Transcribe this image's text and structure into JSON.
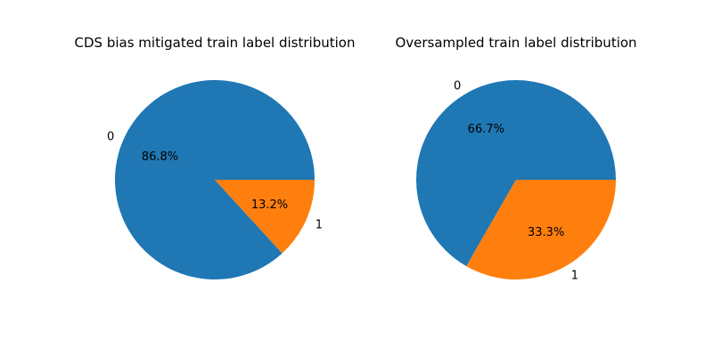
{
  "chart_data": [
    {
      "type": "pie",
      "title": "CDS bias mitigated train label distribution",
      "labels": [
        "0",
        "1"
      ],
      "values": [
        86.8,
        13.2
      ],
      "value_labels": [
        "86.8%",
        "13.2%"
      ],
      "colors": [
        "#1f77b4",
        "#ff7f0e"
      ],
      "legend": "none"
    },
    {
      "type": "pie",
      "title": "Oversampled train label distribution",
      "labels": [
        "0",
        "1"
      ],
      "values": [
        66.7,
        33.3
      ],
      "value_labels": [
        "66.7%",
        "33.3%"
      ],
      "colors": [
        "#1f77b4",
        "#ff7f0e"
      ],
      "legend": "none"
    }
  ]
}
